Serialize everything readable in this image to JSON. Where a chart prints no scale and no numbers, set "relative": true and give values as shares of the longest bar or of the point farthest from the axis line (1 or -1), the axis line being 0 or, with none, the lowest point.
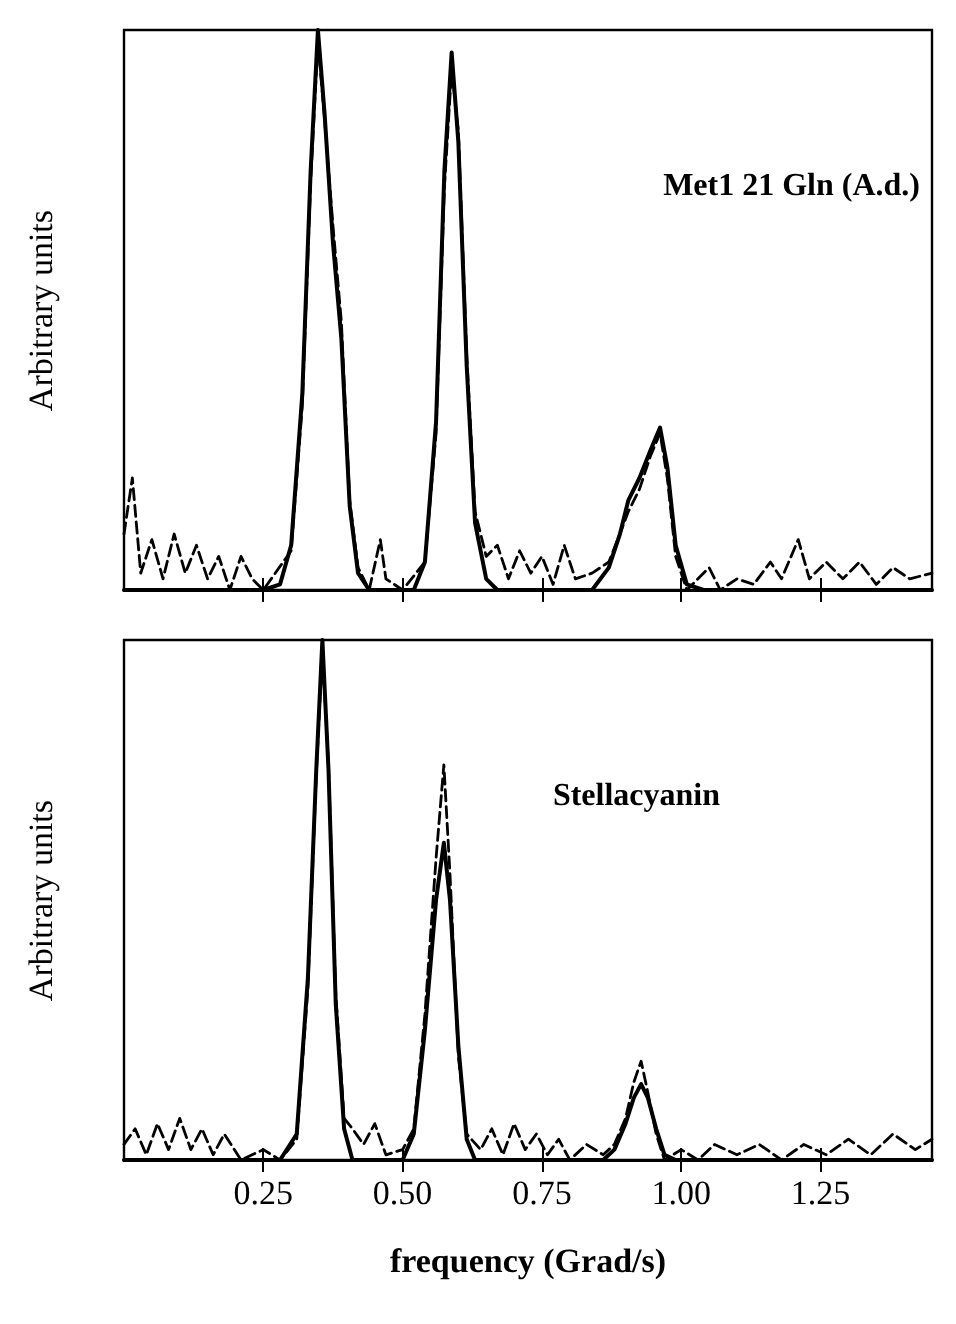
{
  "chart_data": [
    {
      "type": "line",
      "relative": true,
      "ylabel": "Arbitrary units",
      "annotations": [
        "Met1 21 Gln (A.d.)"
      ],
      "xlim": [
        0,
        1.45
      ],
      "xticks": [
        0.25,
        0.5,
        0.75,
        1,
        1.25
      ],
      "tick_labels": false,
      "marker": "none",
      "series": [
        {
          "color": "#000000",
          "line_style": "solid",
          "x": [
            0,
            0.25,
            0.28,
            0.3,
            0.32,
            0.335,
            0.348,
            0.36,
            0.375,
            0.39,
            0.405,
            0.42,
            0.44,
            0.52,
            0.54,
            0.56,
            0.575,
            0.588,
            0.6,
            0.615,
            0.63,
            0.65,
            0.67,
            0.84,
            0.87,
            0.89,
            0.905,
            0.925,
            0.945,
            0.962,
            0.975,
            0.99,
            1.01,
            1.04,
            1.45
          ],
          "values": [
            0,
            0,
            0.01,
            0.08,
            0.35,
            0.75,
            1,
            0.85,
            0.62,
            0.45,
            0.15,
            0.03,
            0,
            0,
            0.05,
            0.3,
            0.75,
            0.96,
            0.8,
            0.4,
            0.12,
            0.02,
            0,
            0,
            0.04,
            0.1,
            0.16,
            0.2,
            0.25,
            0.29,
            0.22,
            0.08,
            0.01,
            0,
            0
          ]
        },
        {
          "color": "#000000",
          "line_style": "dashed",
          "x": [
            0,
            0.015,
            0.03,
            0.05,
            0.07,
            0.09,
            0.11,
            0.13,
            0.15,
            0.17,
            0.19,
            0.21,
            0.23,
            0.25,
            0.3,
            0.32,
            0.335,
            0.348,
            0.36,
            0.375,
            0.39,
            0.405,
            0.42,
            0.44,
            0.46,
            0.47,
            0.5,
            0.54,
            0.56,
            0.575,
            0.588,
            0.6,
            0.615,
            0.63,
            0.65,
            0.67,
            0.69,
            0.71,
            0.73,
            0.75,
            0.77,
            0.79,
            0.81,
            0.84,
            0.87,
            0.89,
            0.905,
            0.925,
            0.945,
            0.962,
            0.975,
            0.99,
            1.01,
            1.05,
            1.07,
            1.1,
            1.13,
            1.16,
            1.18,
            1.21,
            1.23,
            1.26,
            1.29,
            1.32,
            1.35,
            1.38,
            1.41,
            1.45
          ],
          "values": [
            0.1,
            0.2,
            0.03,
            0.09,
            0.02,
            0.1,
            0.03,
            0.08,
            0.02,
            0.06,
            0,
            0.06,
            0.02,
            0,
            0.07,
            0.33,
            0.73,
            0.98,
            0.84,
            0.65,
            0.48,
            0.16,
            0.04,
            0,
            0.09,
            0.02,
            0,
            0.05,
            0.28,
            0.72,
            0.93,
            0.82,
            0.42,
            0.14,
            0.06,
            0.08,
            0.02,
            0.07,
            0.03,
            0.06,
            0.01,
            0.08,
            0.02,
            0.03,
            0.05,
            0.1,
            0.14,
            0.18,
            0.24,
            0.28,
            0.2,
            0.06,
            0,
            0.04,
            0,
            0.02,
            0.01,
            0.05,
            0.02,
            0.09,
            0.02,
            0.05,
            0.02,
            0.05,
            0.01,
            0.04,
            0.02,
            0.03
          ]
        }
      ]
    },
    {
      "type": "line",
      "relative": true,
      "ylabel": "Arbitrary units",
      "xlabel": "frequency (Grad/s)",
      "annotations": [
        "Stellacyanin"
      ],
      "xlim": [
        0,
        1.45
      ],
      "xticks": [
        0.25,
        {
          "value": 0.5,
          "label": "0.50"
        },
        0.75,
        {
          "value": 1,
          "label": "1.00"
        },
        1.25
      ],
      "tick_labels": "x",
      "marker": "none",
      "series": [
        {
          "color": "#000000",
          "line_style": "solid",
          "x": [
            0,
            0.28,
            0.31,
            0.33,
            0.345,
            0.356,
            0.367,
            0.38,
            0.395,
            0.41,
            0.5,
            0.52,
            0.54,
            0.56,
            0.574,
            0.585,
            0.6,
            0.615,
            0.63,
            0.86,
            0.88,
            0.9,
            0.915,
            0.928,
            0.94,
            0.955,
            0.97,
            0.99,
            1.45
          ],
          "values": [
            0,
            0,
            0.05,
            0.35,
            0.75,
            1,
            0.75,
            0.3,
            0.06,
            0,
            0,
            0.05,
            0.25,
            0.5,
            0.61,
            0.5,
            0.22,
            0.04,
            0,
            0,
            0.02,
            0.07,
            0.12,
            0.146,
            0.12,
            0.06,
            0.01,
            0,
            0
          ]
        },
        {
          "color": "#000000",
          "line_style": "dashed",
          "x": [
            0,
            0.02,
            0.04,
            0.06,
            0.08,
            0.1,
            0.12,
            0.14,
            0.16,
            0.18,
            0.21,
            0.25,
            0.28,
            0.31,
            0.33,
            0.345,
            0.356,
            0.367,
            0.38,
            0.395,
            0.41,
            0.43,
            0.45,
            0.47,
            0.5,
            0.52,
            0.54,
            0.56,
            0.574,
            0.585,
            0.6,
            0.615,
            0.64,
            0.66,
            0.68,
            0.7,
            0.72,
            0.74,
            0.76,
            0.78,
            0.8,
            0.83,
            0.86,
            0.88,
            0.9,
            0.915,
            0.928,
            0.94,
            0.955,
            0.97,
            1,
            1.03,
            1.06,
            1.1,
            1.14,
            1.18,
            1.22,
            1.26,
            1.3,
            1.34,
            1.38,
            1.42,
            1.45
          ],
          "values": [
            0.03,
            0.06,
            0.01,
            0.07,
            0.02,
            0.08,
            0.02,
            0.06,
            0.01,
            0.05,
            0,
            0.02,
            0,
            0.04,
            0.33,
            0.74,
            0.98,
            0.76,
            0.32,
            0.08,
            0.06,
            0.03,
            0.07,
            0.01,
            0.02,
            0.06,
            0.28,
            0.58,
            0.76,
            0.55,
            0.2,
            0.05,
            0.02,
            0.06,
            0.01,
            0.07,
            0.02,
            0.05,
            0.01,
            0.04,
            0,
            0.03,
            0.01,
            0.03,
            0.08,
            0.15,
            0.19,
            0.13,
            0.05,
            0,
            0.02,
            0,
            0.03,
            0.01,
            0.03,
            0,
            0.03,
            0.01,
            0.04,
            0.01,
            0.05,
            0.02,
            0.04
          ]
        }
      ]
    }
  ]
}
